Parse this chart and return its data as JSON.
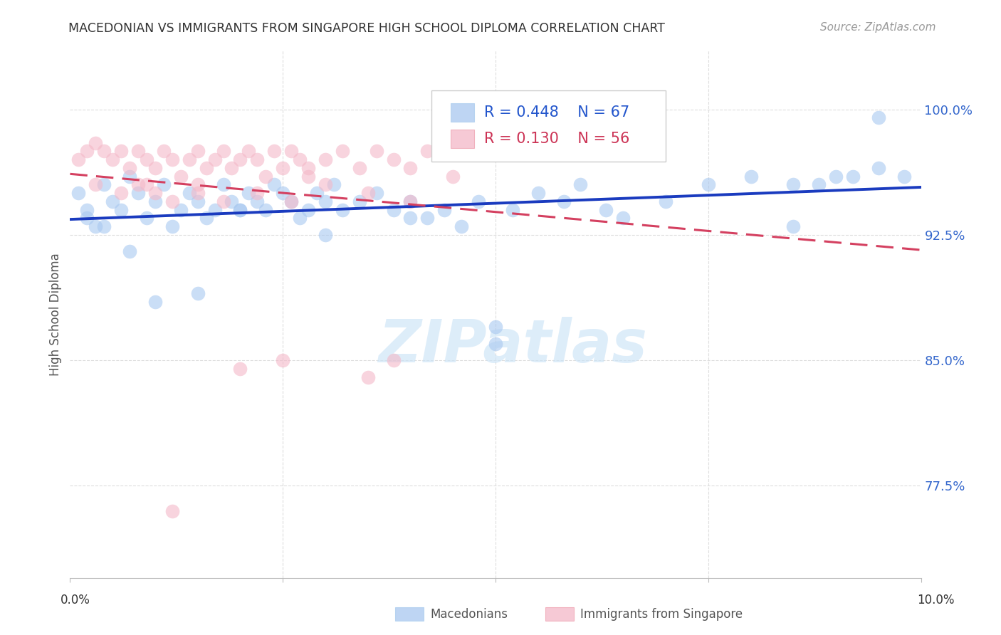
{
  "title": "MACEDONIAN VS IMMIGRANTS FROM SINGAPORE HIGH SCHOOL DIPLOMA CORRELATION CHART",
  "source": "Source: ZipAtlas.com",
  "ylabel": "High School Diploma",
  "ytick_labels": [
    "100.0%",
    "92.5%",
    "85.0%",
    "77.5%"
  ],
  "ytick_values": [
    1.0,
    0.925,
    0.85,
    0.775
  ],
  "xlim": [
    0.0,
    0.1
  ],
  "ylim": [
    0.72,
    1.035
  ],
  "legend_blue_r": "R = 0.448",
  "legend_blue_n": "N = 67",
  "legend_pink_r": "R = 0.130",
  "legend_pink_n": "N = 56",
  "blue_color": "#a8c8f0",
  "pink_color": "#f4b8c8",
  "blue_line_color": "#1a3bbf",
  "pink_line_color": "#d44060",
  "watermark": "ZIPatlas",
  "blue_scatter_x": [
    0.001,
    0.002,
    0.003,
    0.004,
    0.005,
    0.006,
    0.007,
    0.008,
    0.009,
    0.01,
    0.011,
    0.012,
    0.013,
    0.014,
    0.015,
    0.016,
    0.017,
    0.018,
    0.019,
    0.02,
    0.021,
    0.022,
    0.023,
    0.024,
    0.025,
    0.026,
    0.027,
    0.028,
    0.029,
    0.03,
    0.031,
    0.032,
    0.034,
    0.036,
    0.038,
    0.04,
    0.042,
    0.044,
    0.046,
    0.048,
    0.05,
    0.052,
    0.055,
    0.058,
    0.06,
    0.063,
    0.065,
    0.07,
    0.075,
    0.08,
    0.085,
    0.088,
    0.09,
    0.092,
    0.095,
    0.098,
    0.002,
    0.004,
    0.007,
    0.01,
    0.015,
    0.02,
    0.03,
    0.04,
    0.05,
    0.085,
    0.095
  ],
  "blue_scatter_y": [
    0.95,
    0.935,
    0.93,
    0.955,
    0.945,
    0.94,
    0.96,
    0.95,
    0.935,
    0.945,
    0.955,
    0.93,
    0.94,
    0.95,
    0.945,
    0.935,
    0.94,
    0.955,
    0.945,
    0.94,
    0.95,
    0.945,
    0.94,
    0.955,
    0.95,
    0.945,
    0.935,
    0.94,
    0.95,
    0.945,
    0.955,
    0.94,
    0.945,
    0.95,
    0.94,
    0.945,
    0.935,
    0.94,
    0.93,
    0.945,
    0.87,
    0.94,
    0.95,
    0.945,
    0.955,
    0.94,
    0.935,
    0.945,
    0.955,
    0.96,
    0.93,
    0.955,
    0.96,
    0.96,
    0.965,
    0.96,
    0.94,
    0.93,
    0.915,
    0.885,
    0.89,
    0.94,
    0.925,
    0.935,
    0.86,
    0.955,
    0.995
  ],
  "pink_scatter_x": [
    0.001,
    0.002,
    0.003,
    0.004,
    0.005,
    0.006,
    0.007,
    0.008,
    0.009,
    0.01,
    0.011,
    0.012,
    0.013,
    0.014,
    0.015,
    0.016,
    0.017,
    0.018,
    0.019,
    0.02,
    0.021,
    0.022,
    0.023,
    0.024,
    0.025,
    0.026,
    0.027,
    0.028,
    0.03,
    0.032,
    0.034,
    0.036,
    0.038,
    0.04,
    0.042,
    0.045,
    0.003,
    0.006,
    0.009,
    0.012,
    0.015,
    0.018,
    0.022,
    0.026,
    0.03,
    0.035,
    0.04,
    0.025,
    0.035,
    0.02,
    0.012,
    0.038,
    0.028,
    0.015,
    0.01,
    0.008
  ],
  "pink_scatter_y": [
    0.97,
    0.975,
    0.98,
    0.975,
    0.97,
    0.975,
    0.965,
    0.975,
    0.97,
    0.965,
    0.975,
    0.97,
    0.96,
    0.97,
    0.975,
    0.965,
    0.97,
    0.975,
    0.965,
    0.97,
    0.975,
    0.97,
    0.96,
    0.975,
    0.965,
    0.975,
    0.97,
    0.965,
    0.97,
    0.975,
    0.965,
    0.975,
    0.97,
    0.965,
    0.975,
    0.96,
    0.955,
    0.95,
    0.955,
    0.945,
    0.95,
    0.945,
    0.95,
    0.945,
    0.955,
    0.95,
    0.945,
    0.85,
    0.84,
    0.845,
    0.76,
    0.85,
    0.96,
    0.955,
    0.95,
    0.955
  ]
}
